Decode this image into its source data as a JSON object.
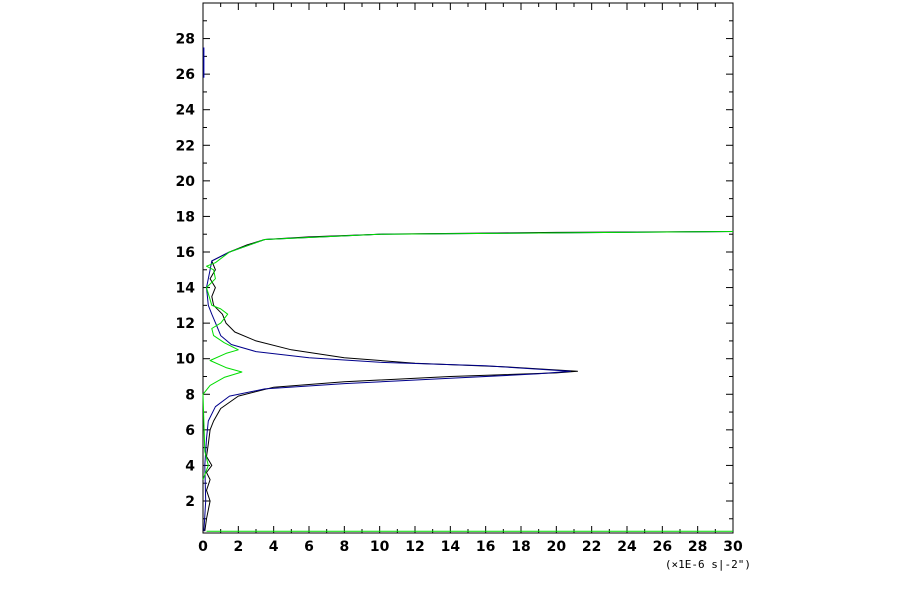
{
  "chart_data": {
    "type": "line",
    "title": "",
    "xlabel": "(×1E-6 s|-2\")",
    "ylabel": "",
    "xlim": [
      0,
      30
    ],
    "ylim": [
      0.2,
      30
    ],
    "xticks": [
      0,
      2,
      4,
      6,
      8,
      10,
      12,
      14,
      16,
      18,
      20,
      22,
      24,
      26,
      28,
      30
    ],
    "yticks": [
      2,
      4,
      6,
      8,
      10,
      12,
      14,
      16,
      18,
      20,
      22,
      24,
      26,
      28
    ],
    "grid": false,
    "legend": "none",
    "series": [
      {
        "color": "#000000",
        "points": [
          [
            0.1,
            0.3
          ],
          [
            0.2,
            1.0
          ],
          [
            0.4,
            2.0
          ],
          [
            0.2,
            2.6
          ],
          [
            0.4,
            3.2
          ],
          [
            0.2,
            3.6
          ],
          [
            0.5,
            4.0
          ],
          [
            0.2,
            4.5
          ],
          [
            0.3,
            5.2
          ],
          [
            0.4,
            6.0
          ],
          [
            0.6,
            6.5
          ],
          [
            1.0,
            7.2
          ],
          [
            2.0,
            7.9
          ],
          [
            4.0,
            8.4
          ],
          [
            8.0,
            8.7
          ],
          [
            14.0,
            9.0
          ],
          [
            20.0,
            9.2
          ],
          [
            21.2,
            9.3
          ],
          [
            17.0,
            9.55
          ],
          [
            12.0,
            9.75
          ],
          [
            8.0,
            10.05
          ],
          [
            5.0,
            10.5
          ],
          [
            3.0,
            11.0
          ],
          [
            1.8,
            11.5
          ],
          [
            1.3,
            12.0
          ],
          [
            1.1,
            12.5
          ],
          [
            0.6,
            13.0
          ],
          [
            0.5,
            13.5
          ],
          [
            0.7,
            14.0
          ],
          [
            0.4,
            14.5
          ],
          [
            0.7,
            15.0
          ],
          [
            0.5,
            15.5
          ],
          [
            1.5,
            16.0
          ],
          [
            2.5,
            16.4
          ],
          [
            3.5,
            16.7
          ],
          [
            6.0,
            16.85
          ],
          [
            10.0,
            17.0
          ],
          [
            20.0,
            17.1
          ],
          [
            30.0,
            17.15
          ]
        ]
      },
      {
        "color": "#00008b",
        "points": [
          [
            0.05,
            0.3
          ],
          [
            0.15,
            2.0
          ],
          [
            0.1,
            4.0
          ],
          [
            0.2,
            5.5
          ],
          [
            0.3,
            6.5
          ],
          [
            0.7,
            7.3
          ],
          [
            1.5,
            7.9
          ],
          [
            3.5,
            8.3
          ],
          [
            8.0,
            8.6
          ],
          [
            14.0,
            8.9
          ],
          [
            19.0,
            9.15
          ],
          [
            20.8,
            9.3
          ],
          [
            16.0,
            9.6
          ],
          [
            10.0,
            9.8
          ],
          [
            6.0,
            10.05
          ],
          [
            3.0,
            10.4
          ],
          [
            1.6,
            10.8
          ],
          [
            1.0,
            11.3
          ],
          [
            0.8,
            11.8
          ],
          [
            0.5,
            12.5
          ],
          [
            0.3,
            13.0
          ],
          [
            0.2,
            14.0
          ],
          [
            0.4,
            15.0
          ],
          [
            0.5,
            15.5
          ],
          [
            1.5,
            16.0
          ],
          [
            3.5,
            16.7
          ],
          [
            10.0,
            17.0
          ],
          [
            30.0,
            17.15
          ]
        ]
      },
      {
        "color": "#00dd00",
        "points": [
          [
            0.2,
            0.3
          ],
          [
            30.0,
            0.3
          ]
        ]
      },
      {
        "color": "#00dd00",
        "points": [
          [
            0.0,
            3.2
          ],
          [
            0.3,
            4.0
          ],
          [
            0.1,
            4.8
          ],
          [
            0.0,
            8.0
          ],
          [
            0.4,
            8.5
          ],
          [
            1.2,
            8.95
          ],
          [
            2.2,
            9.25
          ],
          [
            1.3,
            9.5
          ],
          [
            0.4,
            9.9
          ],
          [
            1.3,
            10.3
          ],
          [
            2.0,
            10.5
          ],
          [
            1.2,
            10.9
          ],
          [
            0.6,
            11.3
          ],
          [
            0.5,
            11.7
          ],
          [
            1.0,
            12.0
          ],
          [
            1.4,
            12.5
          ],
          [
            1.0,
            12.8
          ],
          [
            0.5,
            13.0
          ],
          [
            0.2,
            14.0
          ],
          [
            0.7,
            14.5
          ],
          [
            0.6,
            15.0
          ],
          [
            0.2,
            15.2
          ],
          [
            0.7,
            15.4
          ],
          [
            1.5,
            16.0
          ],
          [
            3.5,
            16.7
          ],
          [
            10.0,
            17.0
          ],
          [
            30.0,
            17.15
          ]
        ]
      },
      {
        "color": "#0000cc",
        "points": [
          [
            0.05,
            25.8
          ],
          [
            0.05,
            27.5
          ]
        ]
      }
    ]
  }
}
